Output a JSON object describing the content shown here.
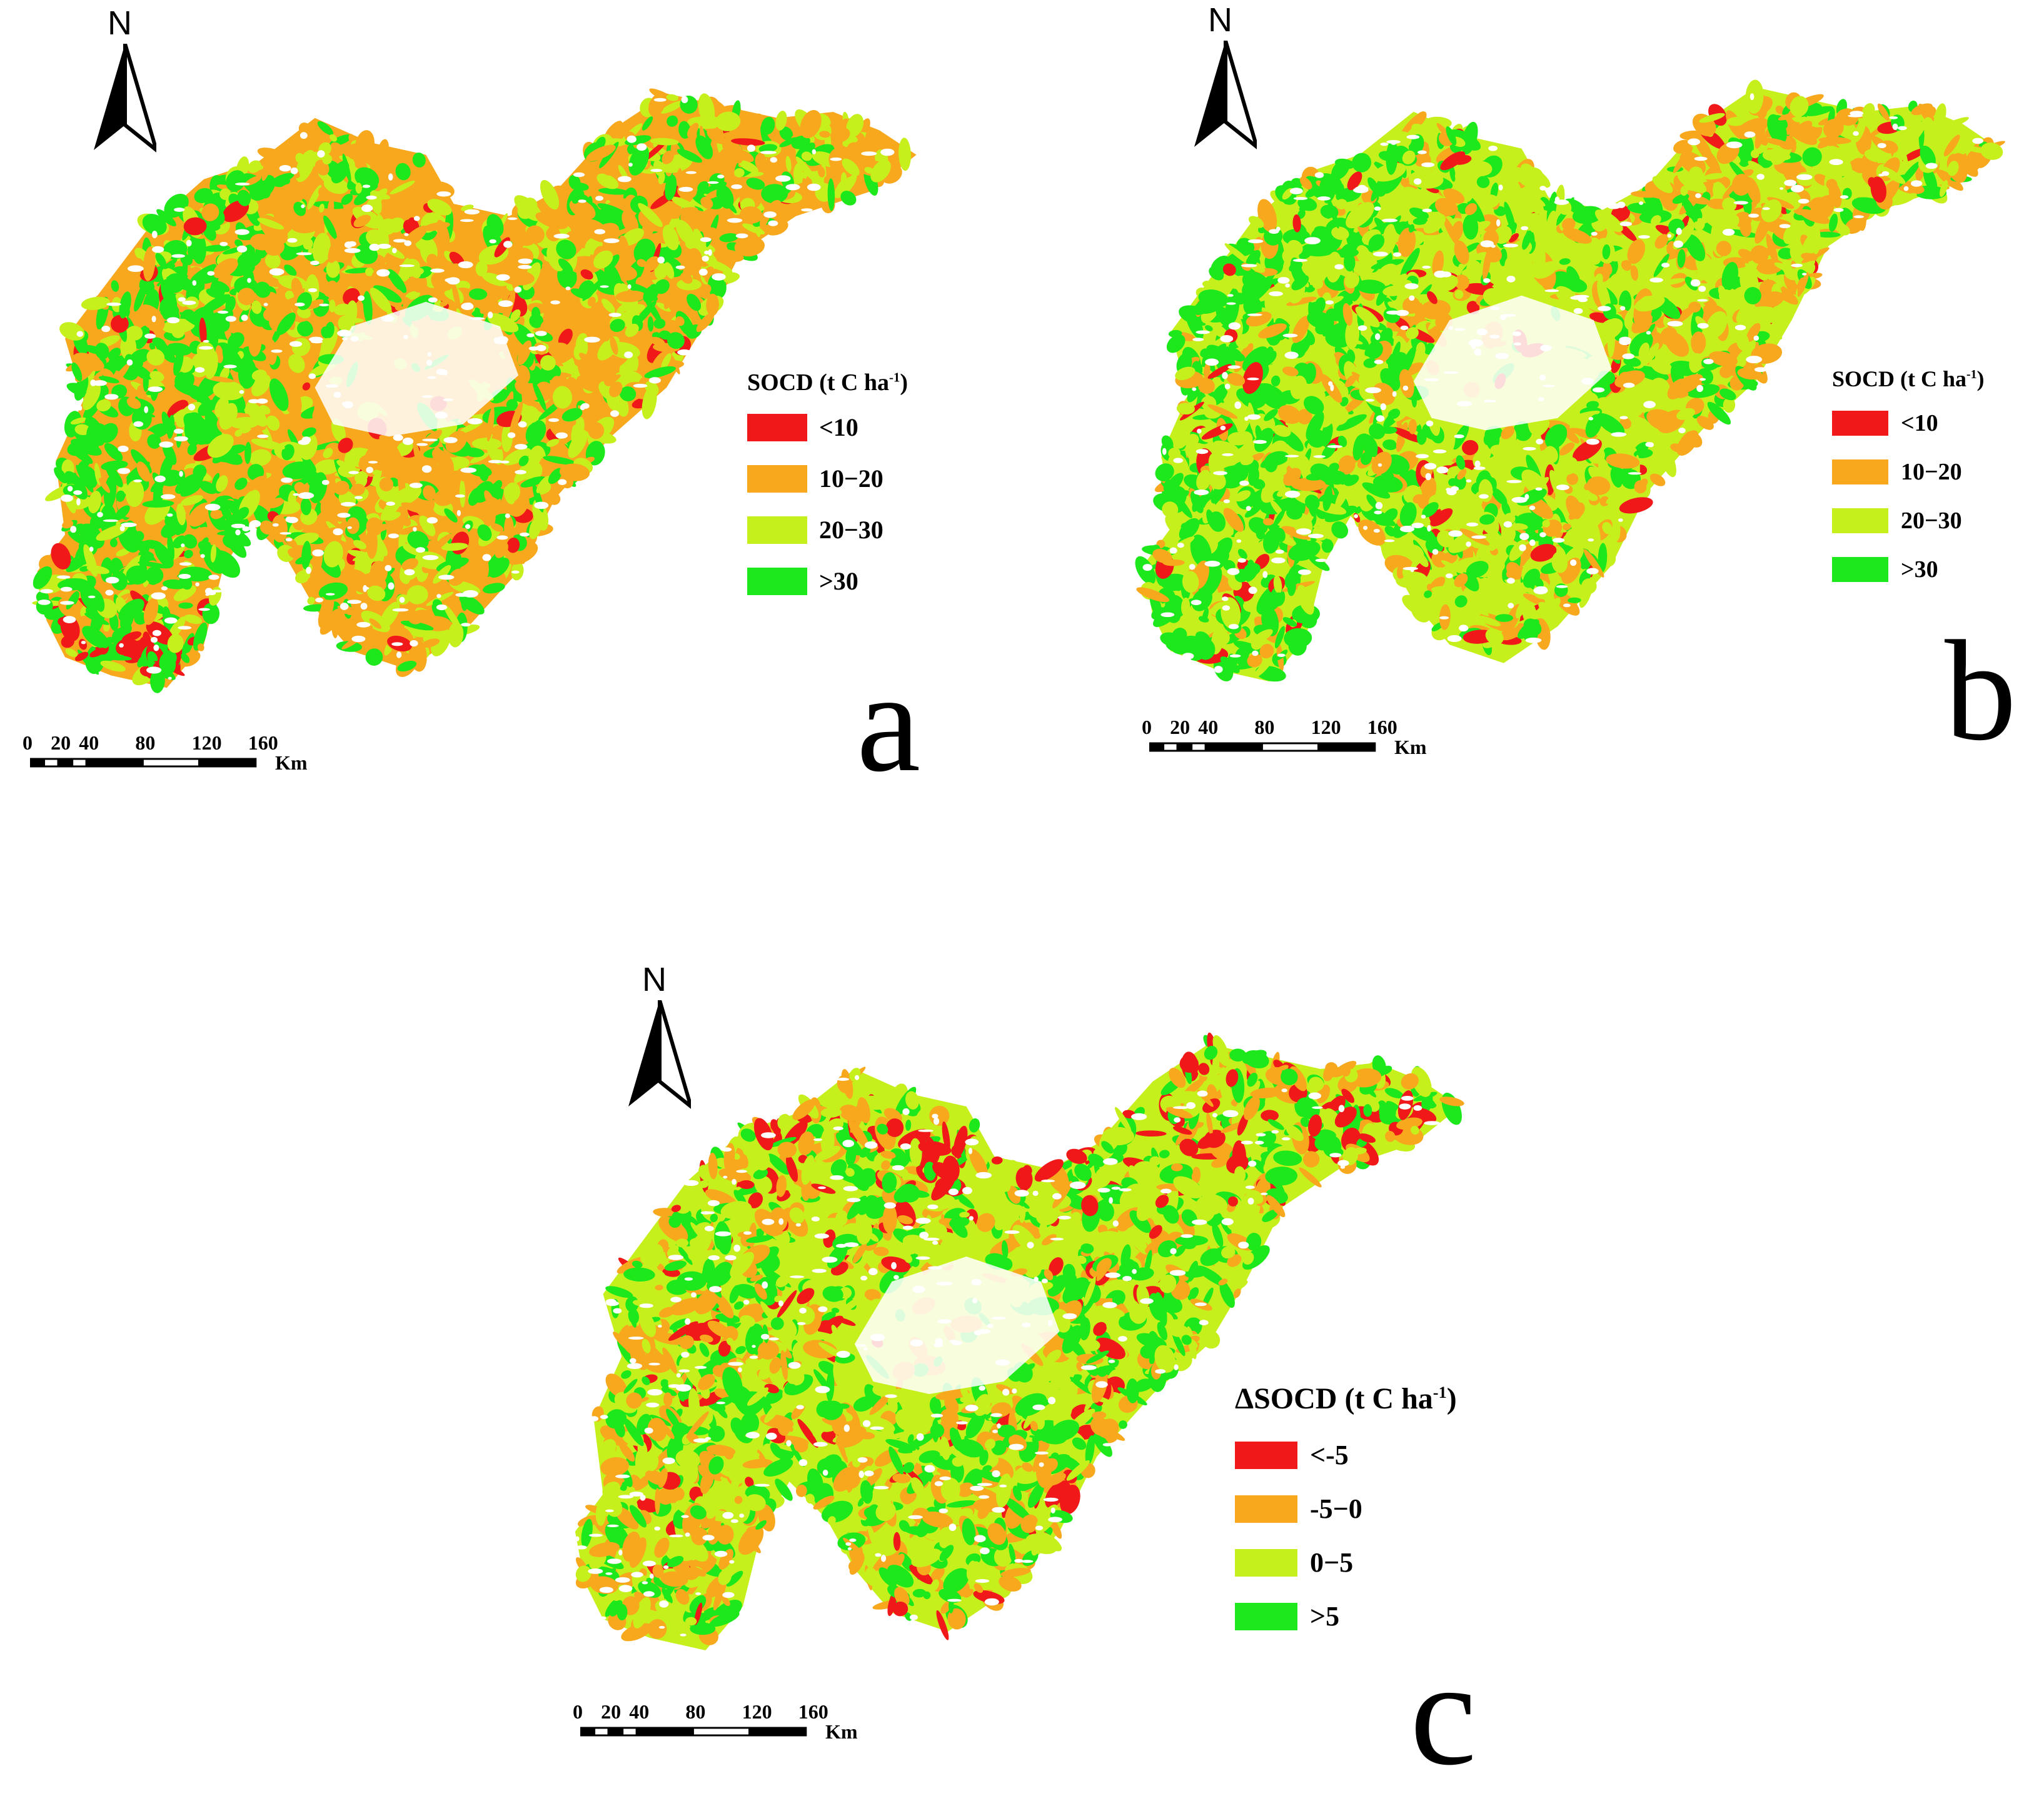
{
  "panels": [
    {
      "letter": "a",
      "north": "N",
      "legend": {
        "title": "SOCD (t C ha",
        "title_sup": "-1",
        "title_close": ")",
        "items": [
          {
            "label": "<10",
            "color": "#f01818"
          },
          {
            "label": "10−20",
            "color": "#f7a81c"
          },
          {
            "label": "20−30",
            "color": "#c6f01c"
          },
          {
            "label": ">30",
            "color": "#1ce81c"
          }
        ]
      },
      "scale": {
        "ticks": [
          "0",
          "20",
          "40",
          "80",
          "120",
          "160"
        ],
        "unit": "Km"
      }
    },
    {
      "letter": "b",
      "north": "N",
      "legend": {
        "title": "SOCD (t C ha",
        "title_sup": "-1",
        "title_close": ")",
        "items": [
          {
            "label": "<10",
            "color": "#f01818"
          },
          {
            "label": "10−20",
            "color": "#f7a81c"
          },
          {
            "label": "20−30",
            "color": "#c6f01c"
          },
          {
            "label": ">30",
            "color": "#1ce81c"
          }
        ]
      },
      "scale": {
        "ticks": [
          "0",
          "20",
          "40",
          "80",
          "120",
          "160"
        ],
        "unit": "Km"
      }
    },
    {
      "letter": "c",
      "north": "N",
      "legend": {
        "title": "ΔSOCD (t C ha",
        "title_sup": "-1",
        "title_close": ")",
        "items": [
          {
            "label": "<-5",
            "color": "#f01818"
          },
          {
            "label": "-5−0",
            "color": "#f7a81c"
          },
          {
            "label": "0−5",
            "color": "#c6f01c"
          },
          {
            "label": ">5",
            "color": "#1ce81c"
          }
        ]
      },
      "scale": {
        "ticks": [
          "0",
          "20",
          "40",
          "80",
          "120",
          "160"
        ],
        "unit": "Km"
      }
    }
  ]
}
